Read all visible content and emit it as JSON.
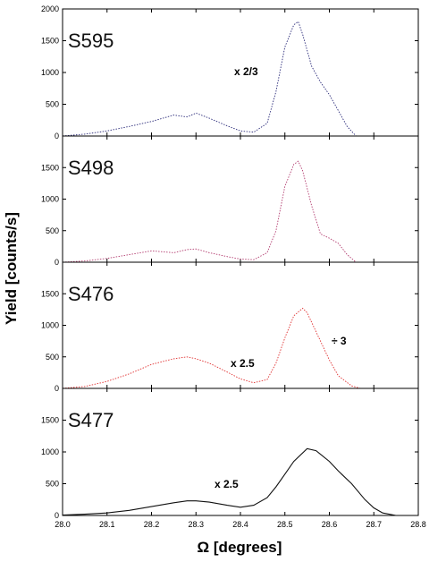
{
  "figure": {
    "ylabel": "Yield [counts/s]",
    "xlabel": "Ω [degrees]"
  },
  "chart_data": {
    "type": "line",
    "xlabel": "Ω [degrees]",
    "ylabel": "Yield [counts/s]",
    "xlim": [
      28.0,
      28.8
    ],
    "x_ticks": [
      "28.0",
      "28.1",
      "28.2",
      "28.3",
      "28.4",
      "28.5",
      "28.6",
      "28.7",
      "28.8"
    ],
    "panels": [
      {
        "label": "S595",
        "color": "#2b2b7a",
        "ylim": [
          0,
          2000
        ],
        "y_ticks": [
          "0",
          "500",
          "1000",
          "1500",
          "2000"
        ],
        "annotations": [
          "x 2/3"
        ],
        "x": [
          28.0,
          28.05,
          28.1,
          28.15,
          28.2,
          28.25,
          28.28,
          28.3,
          28.33,
          28.37,
          28.4,
          28.43,
          28.46,
          28.48,
          28.5,
          28.52,
          28.53,
          28.54,
          28.56,
          28.58,
          28.6,
          28.62,
          28.64,
          28.66
        ],
        "y": [
          0,
          30,
          80,
          150,
          230,
          330,
          300,
          360,
          280,
          160,
          80,
          60,
          200,
          700,
          1400,
          1750,
          1800,
          1600,
          1100,
          850,
          650,
          400,
          150,
          0
        ]
      },
      {
        "label": "S498",
        "color": "#b23a6e",
        "ylim": [
          0,
          2000
        ],
        "y_ticks": [
          "0",
          "500",
          "1000",
          "1500"
        ],
        "annotations": [],
        "x": [
          28.0,
          28.05,
          28.1,
          28.15,
          28.2,
          28.25,
          28.28,
          28.3,
          28.33,
          28.37,
          28.4,
          28.43,
          28.46,
          28.48,
          28.5,
          28.52,
          28.53,
          28.54,
          28.56,
          28.58,
          28.6,
          28.62,
          28.64,
          28.66
        ],
        "y": [
          0,
          20,
          60,
          120,
          180,
          150,
          200,
          210,
          150,
          90,
          50,
          40,
          150,
          500,
          1200,
          1550,
          1600,
          1450,
          900,
          450,
          380,
          300,
          120,
          0
        ]
      },
      {
        "label": "S476",
        "color": "#e03030",
        "ylim": [
          0,
          2000
        ],
        "y_ticks": [
          "0",
          "500",
          "1000",
          "1500"
        ],
        "annotations": [
          "x 2.5",
          "÷ 3"
        ],
        "x": [
          28.0,
          28.05,
          28.1,
          28.15,
          28.2,
          28.25,
          28.28,
          28.3,
          28.33,
          28.37,
          28.4,
          28.43,
          28.46,
          28.48,
          28.5,
          28.52,
          28.54,
          28.55,
          28.57,
          28.6,
          28.62,
          28.65,
          28.67
        ],
        "y": [
          0,
          30,
          110,
          230,
          380,
          470,
          500,
          470,
          400,
          260,
          150,
          90,
          140,
          400,
          800,
          1150,
          1270,
          1200,
          900,
          450,
          200,
          40,
          0
        ]
      },
      {
        "label": "S477",
        "color": "#111111",
        "ylim": [
          0,
          2000
        ],
        "y_ticks": [
          "0",
          "500",
          "1000",
          "1500"
        ],
        "annotations": [
          "x 2.5"
        ],
        "x": [
          28.0,
          28.05,
          28.1,
          28.15,
          28.2,
          28.25,
          28.28,
          28.3,
          28.33,
          28.37,
          28.4,
          28.43,
          28.46,
          28.48,
          28.5,
          28.52,
          28.55,
          28.57,
          28.6,
          28.62,
          28.65,
          28.68,
          28.7,
          28.72,
          28.75
        ],
        "y": [
          5,
          20,
          40,
          80,
          140,
          200,
          230,
          230,
          210,
          160,
          130,
          160,
          280,
          450,
          650,
          850,
          1050,
          1020,
          850,
          700,
          500,
          250,
          120,
          40,
          0
        ]
      }
    ]
  }
}
